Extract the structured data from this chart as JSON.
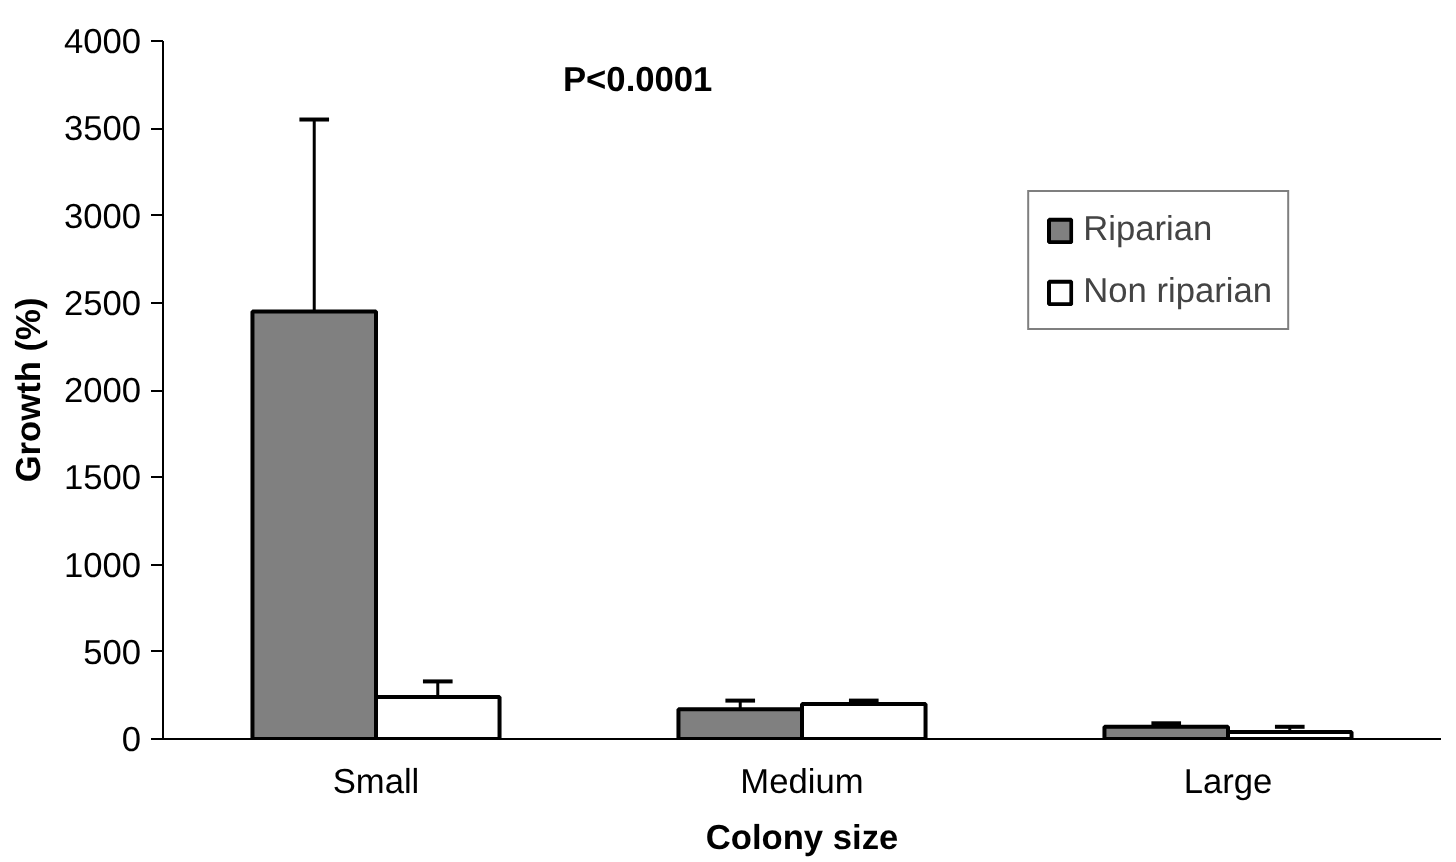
{
  "chart_data": {
    "type": "bar",
    "xlabel": "Colony size",
    "ylabel": "Growth (%)",
    "categories": [
      "Small",
      "Medium",
      "Large"
    ],
    "series": [
      {
        "name": "Riparian",
        "color": "#808080",
        "values": [
          2450,
          170,
          70
        ],
        "errors": [
          [
            2450,
            3550
          ],
          [
            170,
            220
          ],
          [
            70,
            90
          ]
        ]
      },
      {
        "name": "Non riparian",
        "color": "#ffffff",
        "values": [
          240,
          200,
          40
        ],
        "errors": [
          [
            240,
            330
          ],
          [
            200,
            220
          ],
          [
            40,
            70
          ]
        ]
      }
    ],
    "ylim": [
      0,
      4000
    ],
    "yticks": [
      0,
      500,
      1000,
      1500,
      2000,
      2500,
      3000,
      3500,
      4000
    ],
    "grid": false,
    "legend": "right",
    "annotations": [
      "P<0.0001"
    ]
  }
}
